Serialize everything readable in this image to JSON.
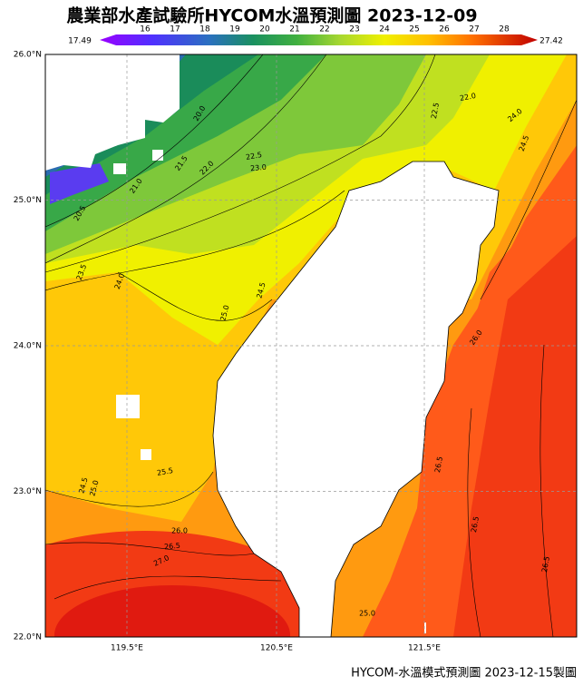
{
  "header": {
    "title": "農業部水產試驗所HYCOM水溫預測圖 2023-12-09"
  },
  "colorbar": {
    "min_label": "17.49",
    "max_label": "27.42",
    "ticks": [
      "16",
      "17",
      "18",
      "19",
      "20",
      "21",
      "22",
      "23",
      "24",
      "25",
      "26",
      "27",
      "28"
    ]
  },
  "axes": {
    "lat_labels": [
      "26.0°N",
      "25.0°N",
      "24.0°N",
      "23.0°N",
      "22.0°N"
    ],
    "lon_labels": [
      "119.5°E",
      "120.5°E",
      "121.5°E"
    ]
  },
  "contour_labels": [
    "20.5",
    "21.0",
    "21.5",
    "22.0",
    "22.5",
    "23.0",
    "20.0",
    "23.5",
    "24.0",
    "24.5",
    "25.0",
    "22.5",
    "22.0",
    "24.0",
    "24.5",
    "24.5",
    "25.0",
    "25.5",
    "26.0",
    "26.5",
    "27.0",
    "26.0",
    "26.5",
    "26.5",
    "26.5",
    "25.0"
  ],
  "footer": {
    "credit": "HYCOM-水溫模式預測圖 2023-12-15製圖"
  }
}
